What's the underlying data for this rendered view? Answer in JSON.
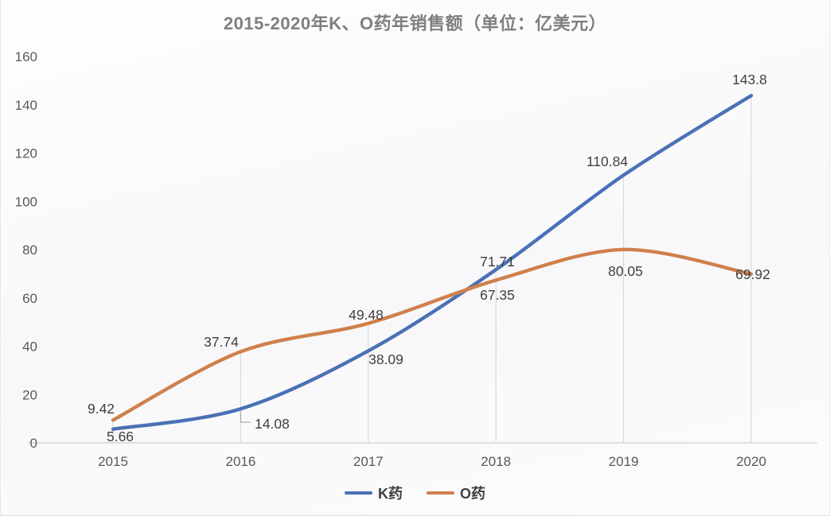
{
  "chart_data": {
    "type": "line",
    "title": "2015-2020年K、O药年销售额（单位：亿美元）",
    "categories": [
      "2015",
      "2016",
      "2017",
      "2018",
      "2019",
      "2020"
    ],
    "series": [
      {
        "name": "K药",
        "color": "#4a71b6",
        "values": [
          5.66,
          14.08,
          38.09,
          71.71,
          110.84,
          143.8
        ]
      },
      {
        "name": "O药",
        "color": "#d0804c",
        "values": [
          9.42,
          37.74,
          49.48,
          67.35,
          80.05,
          69.92
        ]
      }
    ],
    "ylim": [
      0,
      160
    ],
    "ytick_step": 20,
    "line_style": "smoothed",
    "grid": "drop-lines-from-top-point-to-axis",
    "legend_position": "bottom-center"
  },
  "colors": {
    "title_text": "#7f7f82",
    "tick_text": "#595959",
    "data_label_text": "#3f3f3f",
    "legend_text": "#404040",
    "drop_line": "#d6d6da",
    "axis_line": "#cfcfd3",
    "leader_line": "#aaaaae"
  }
}
